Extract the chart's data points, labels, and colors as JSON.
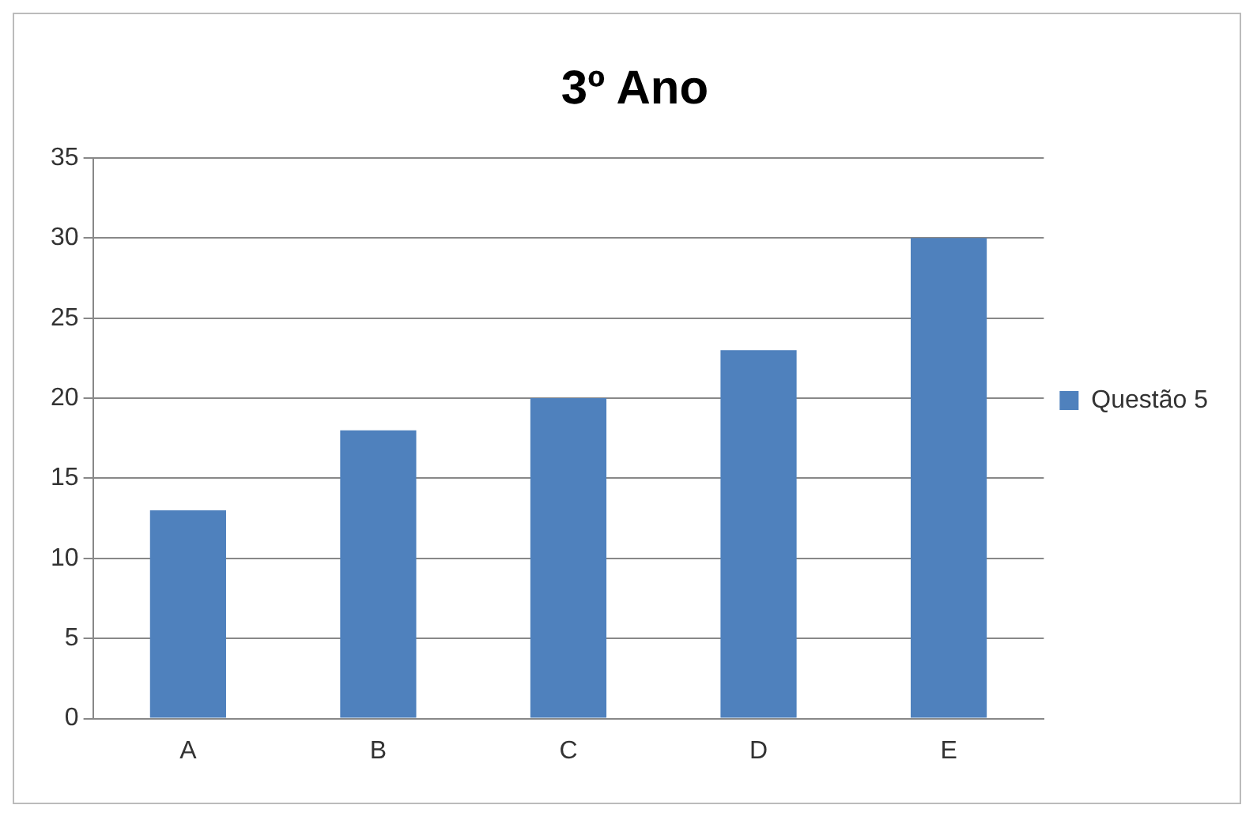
{
  "chart_data": {
    "type": "bar",
    "title": "3º Ano",
    "categories": [
      "A",
      "B",
      "C",
      "D",
      "E"
    ],
    "series": [
      {
        "name": "Questão 5",
        "color": "#4f81bd",
        "values": [
          13,
          18,
          20,
          23,
          30
        ]
      }
    ],
    "ylim": [
      0,
      35
    ],
    "yticks": [
      0,
      5,
      10,
      15,
      20,
      25,
      30,
      35
    ],
    "grid": "y",
    "legend": "right"
  }
}
